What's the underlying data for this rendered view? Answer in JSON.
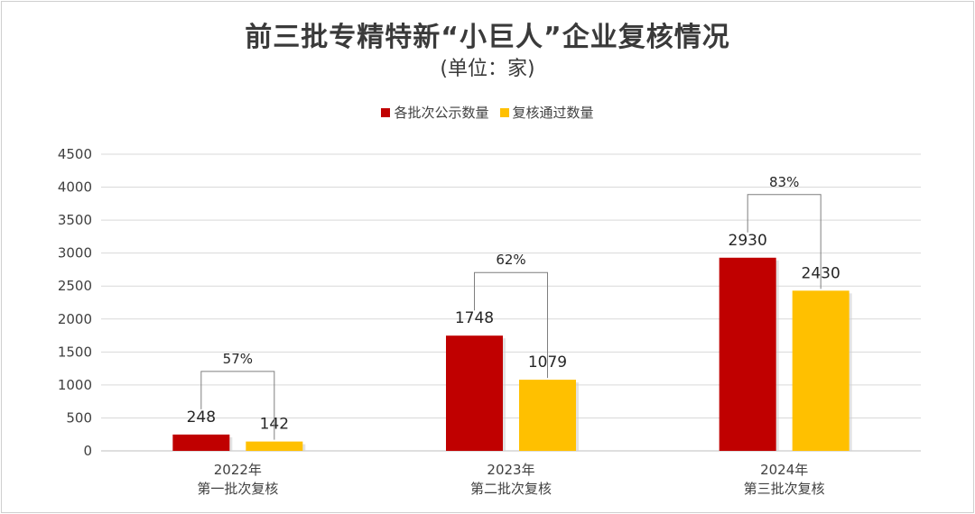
{
  "chart_data": {
    "type": "bar",
    "title": "前三批专精特新“小巨人”企业复核情况",
    "subtitle": "(单位：家)",
    "xlabel": "",
    "ylabel": "",
    "ylim": [
      0,
      4500
    ],
    "yticks": [
      0,
      500,
      1000,
      1500,
      2000,
      2500,
      3000,
      3500,
      4000,
      4500
    ],
    "grid": true,
    "legend_position": "top",
    "categories": [
      {
        "line1": "2022年",
        "line2": "第一批次复核"
      },
      {
        "line1": "2023年",
        "line2": "第二批次复核"
      },
      {
        "line1": "2024年",
        "line2": "第三批次复核"
      }
    ],
    "series": [
      {
        "name": "各批次公示数量",
        "color": "#c00000",
        "values": [
          248,
          1748,
          2930
        ]
      },
      {
        "name": "复核通过数量",
        "color": "#ffc000",
        "values": [
          142,
          1079,
          2430
        ]
      }
    ],
    "annotations": [
      "57%",
      "62%",
      "83%"
    ]
  }
}
